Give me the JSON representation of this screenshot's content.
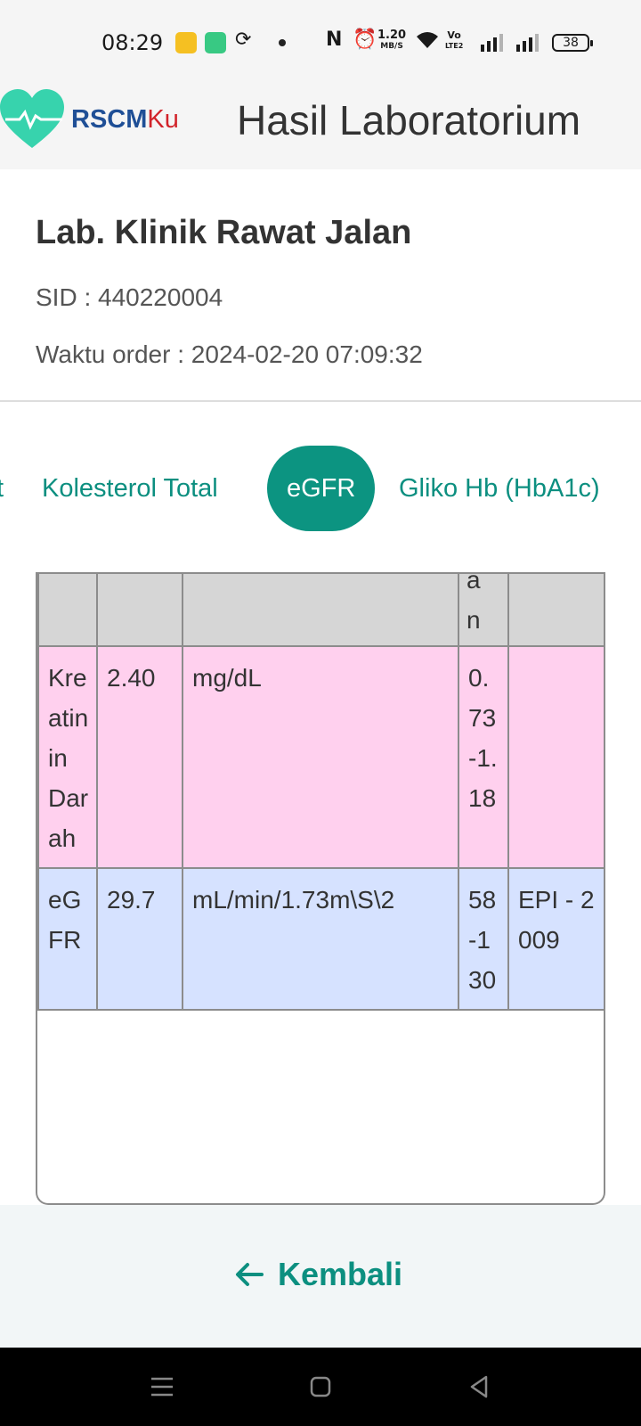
{
  "status_bar": {
    "time": "08:29",
    "net_speed_value": "1.20",
    "net_speed_unit": "MB/S",
    "volte_top": "Vo",
    "volte_bottom": "LTE2",
    "battery": "38"
  },
  "header": {
    "logo_text_1": "RSCM",
    "logo_text_2": "Ku",
    "title": "Hasil Laboratorium"
  },
  "info": {
    "lab_name": "Lab. Klinik Rawat Jalan",
    "sid": "SID : 440220004",
    "order_time": "Waktu order : 2024-02-20 07:09:32"
  },
  "tabs": [
    {
      "label": "t",
      "active": false
    },
    {
      "label": "Kolesterol Total",
      "active": false
    },
    {
      "label": "eGFR",
      "active": true
    },
    {
      "label": "Gliko Hb (HbA1c)",
      "active": false
    }
  ],
  "table": {
    "header_fragment_1": "a",
    "header_fragment_2": "n",
    "rows": [
      {
        "name": "Kreatinin Darah",
        "value": "2.40",
        "unit": "mg/dL",
        "reference": "0.73-1.18",
        "note": ""
      },
      {
        "name": "eGFR",
        "value": "29.7",
        "unit": "mL/min/1.73m\\S\\2",
        "reference": "58-130",
        "note": "EPI - 2009"
      }
    ]
  },
  "footer": {
    "back_label": "Kembali"
  },
  "colors": {
    "accent": "#0c9481",
    "row_abnormal_high": "#ffd0ee",
    "row_abnormal_low": "#d6e2ff"
  }
}
